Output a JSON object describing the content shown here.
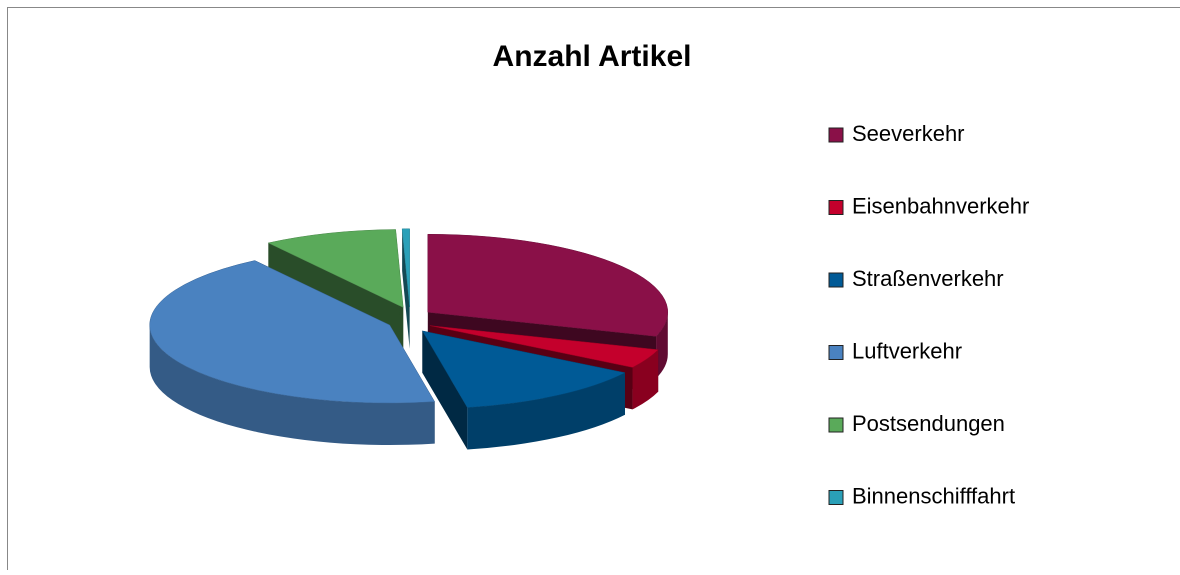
{
  "chart_data": {
    "type": "pie",
    "title": "Anzahl Artikel",
    "categories": [
      "Seeverkehr",
      "Eisenbahnverkehr",
      "Straßenverkehr",
      "Luftverkehr",
      "Postsendungen",
      "Binnenschifffahrt"
    ],
    "values": [
      30,
      4,
      13,
      43.5,
      9,
      0.5
    ],
    "colors": [
      "#8a1048",
      "#c4002c",
      "#005a96",
      "#4a82c0",
      "#5aaa5a",
      "#2aa0b8"
    ],
    "legend": "right"
  }
}
